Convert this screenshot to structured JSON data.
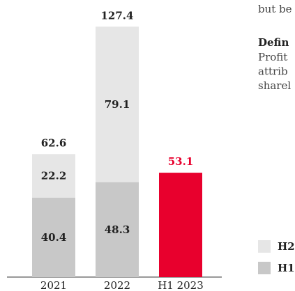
{
  "chart_data": {
    "type": "stacked_bar",
    "categories": [
      "2021",
      "2022",
      "H1 2023"
    ],
    "series": [
      {
        "name": "H1",
        "color": "#c8c8c8",
        "colors": [
          "#c8c8c8",
          "#c8c8c8",
          "#e8002d"
        ],
        "values": [
          40.4,
          48.3,
          53.1
        ]
      },
      {
        "name": "H2",
        "color": "#e6e6e6",
        "values": [
          22.2,
          79.1,
          null
        ]
      }
    ],
    "totals": [
      62.6,
      127.4,
      53.1
    ],
    "ylim": [
      0,
      130
    ]
  },
  "side_text": {
    "top": "but be",
    "heading": "Defin",
    "lines": [
      "Profit",
      "attrib",
      "sharel"
    ]
  }
}
